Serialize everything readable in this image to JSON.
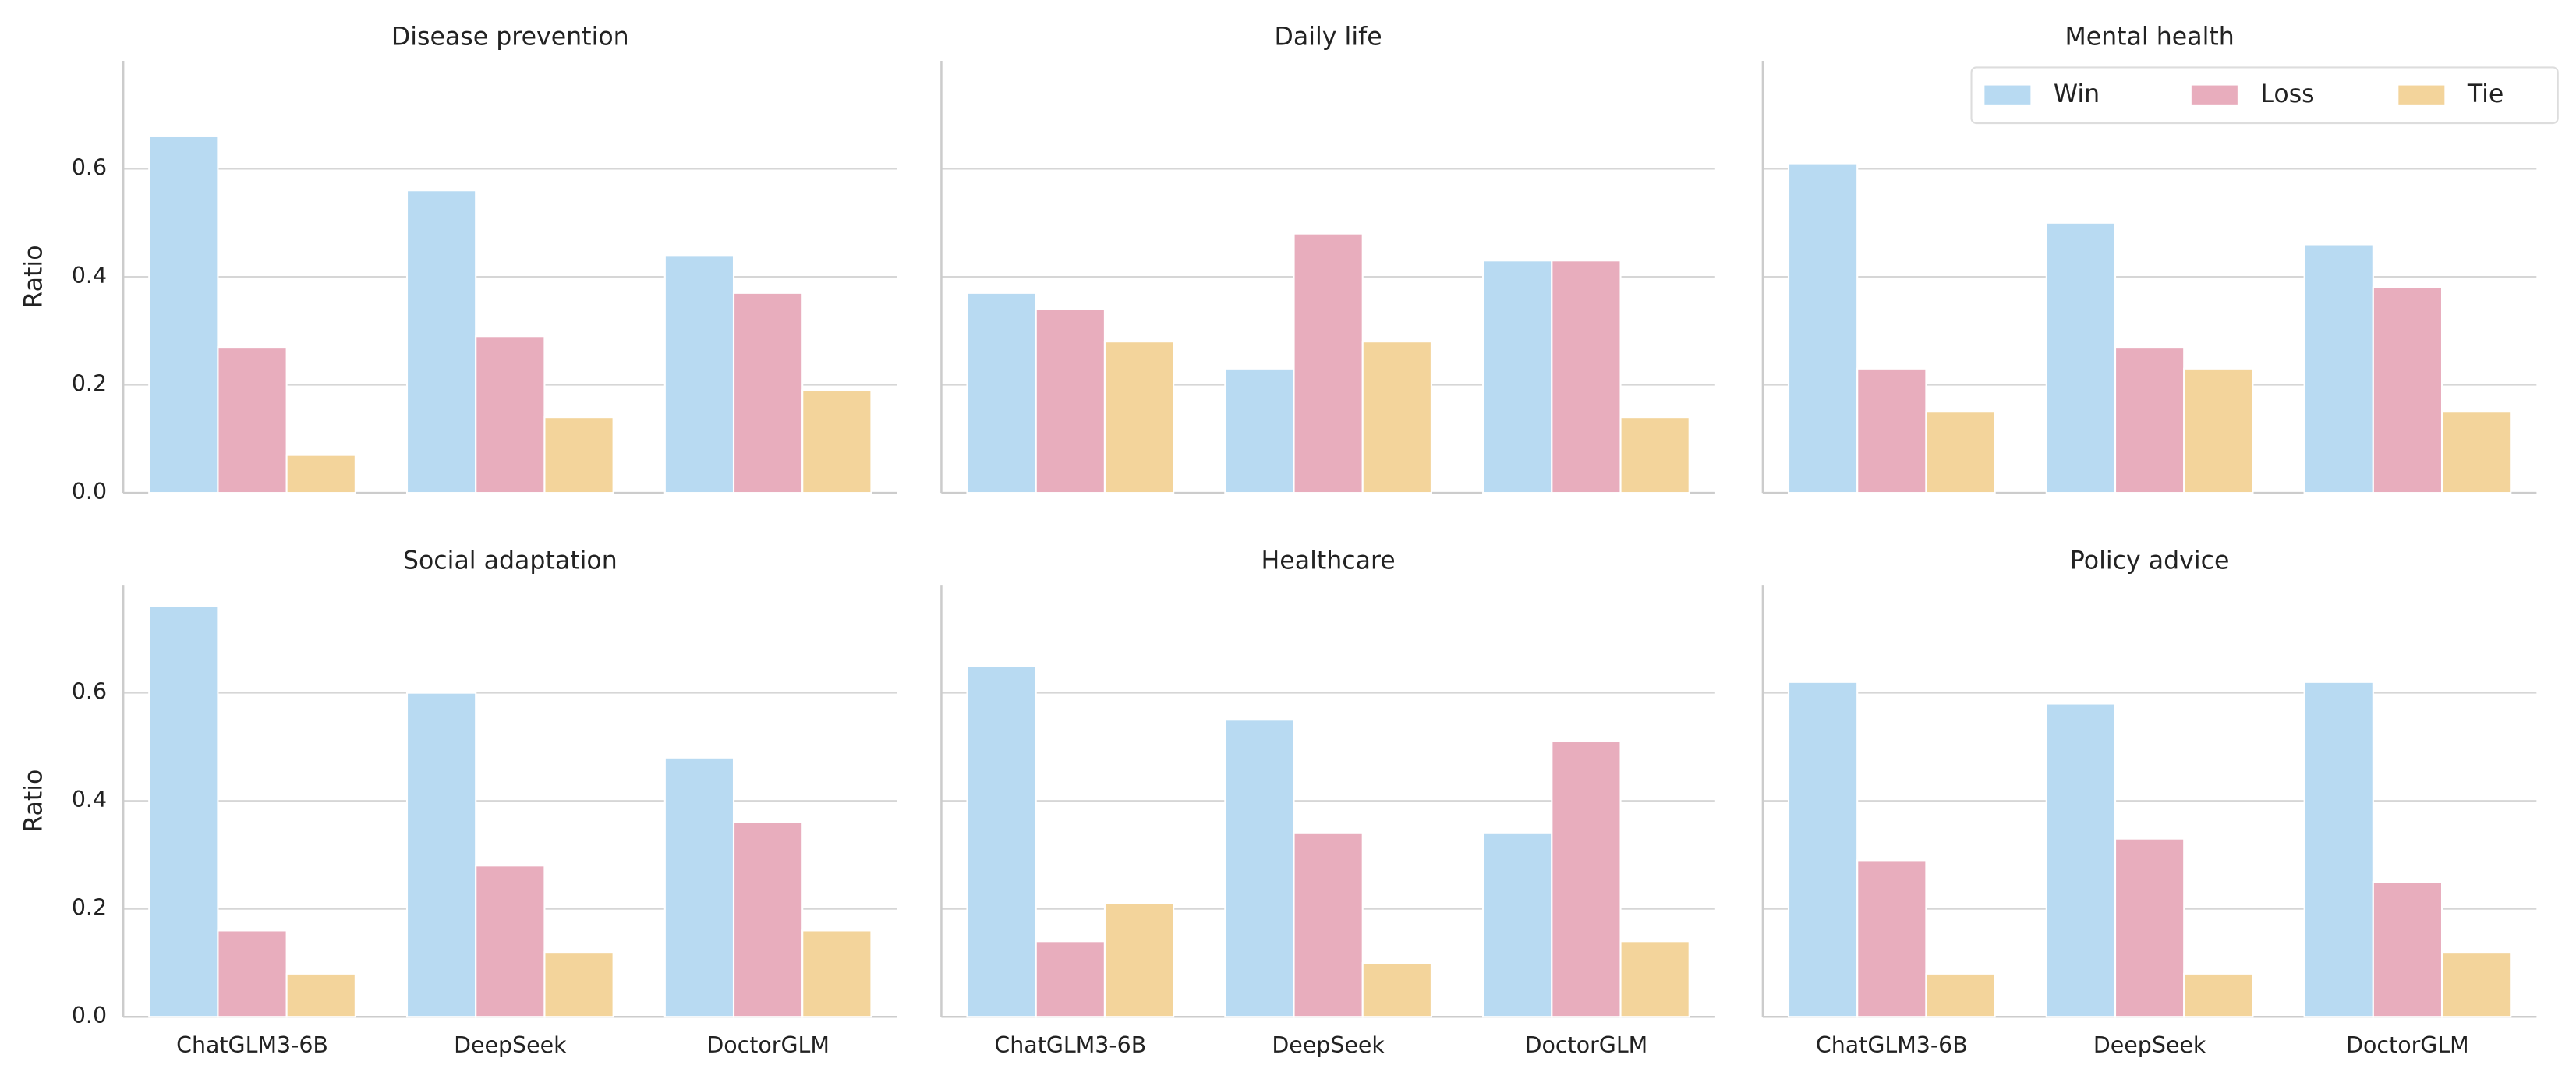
{
  "chart_data": [
    {
      "type": "bar",
      "title": "Disease prevention",
      "ylabel": "Ratio",
      "categories": [
        "ChatGLM3-6B",
        "DeepSeek",
        "DoctorGLM"
      ],
      "series": [
        {
          "name": "Win",
          "color": "#b8daf2",
          "values": [
            0.66,
            0.56,
            0.44
          ]
        },
        {
          "name": "Loss",
          "color": "#e8adbd",
          "values": [
            0.27,
            0.29,
            0.37
          ]
        },
        {
          "name": "Tie",
          "color": "#f3d49b",
          "values": [
            0.07,
            0.14,
            0.19
          ]
        }
      ],
      "ylim": [
        0,
        0.8
      ],
      "yticks": [
        {
          "value": 0,
          "label": "0.0"
        },
        0.2,
        0.4,
        0.6
      ],
      "grid": true
    },
    {
      "type": "bar",
      "title": "Daily life",
      "categories": [
        "ChatGLM3-6B",
        "DeepSeek",
        "DoctorGLM"
      ],
      "series": [
        {
          "name": "Win",
          "color": "#b8daf2",
          "values": [
            0.37,
            0.23,
            0.43
          ]
        },
        {
          "name": "Loss",
          "color": "#e8adbd",
          "values": [
            0.34,
            0.48,
            0.43
          ]
        },
        {
          "name": "Tie",
          "color": "#f3d49b",
          "values": [
            0.28,
            0.28,
            0.14
          ]
        }
      ],
      "ylim": [
        0,
        0.8
      ],
      "yticks": [
        0,
        0.2,
        0.4,
        0.6
      ],
      "grid": true
    },
    {
      "type": "bar",
      "title": "Mental health",
      "categories": [
        "ChatGLM3-6B",
        "DeepSeek",
        "DoctorGLM"
      ],
      "series": [
        {
          "name": "Win",
          "color": "#b8daf2",
          "values": [
            0.61,
            0.5,
            0.46
          ]
        },
        {
          "name": "Loss",
          "color": "#e8adbd",
          "values": [
            0.23,
            0.27,
            0.38
          ]
        },
        {
          "name": "Tie",
          "color": "#f3d49b",
          "values": [
            0.15,
            0.23,
            0.15
          ]
        }
      ],
      "ylim": [
        0,
        0.8
      ],
      "yticks": [
        0,
        0.2,
        0.4,
        0.6
      ],
      "grid": true,
      "legend": "upper right"
    },
    {
      "type": "bar",
      "title": "Social adaptation",
      "ylabel": "Ratio",
      "categories": [
        "ChatGLM3-6B",
        "DeepSeek",
        "DoctorGLM"
      ],
      "series": [
        {
          "name": "Win",
          "color": "#b8daf2",
          "values": [
            0.76,
            0.6,
            0.48
          ]
        },
        {
          "name": "Loss",
          "color": "#e8adbd",
          "values": [
            0.16,
            0.28,
            0.36
          ]
        },
        {
          "name": "Tie",
          "color": "#f3d49b",
          "values": [
            0.08,
            0.12,
            0.16
          ]
        }
      ],
      "ylim": [
        0,
        0.8
      ],
      "yticks": [
        {
          "value": 0,
          "label": "0.0"
        },
        0.2,
        0.4,
        0.6
      ],
      "grid": true
    },
    {
      "type": "bar",
      "title": "Healthcare",
      "categories": [
        "ChatGLM3-6B",
        "DeepSeek",
        "DoctorGLM"
      ],
      "series": [
        {
          "name": "Win",
          "color": "#b8daf2",
          "values": [
            0.65,
            0.55,
            0.34
          ]
        },
        {
          "name": "Loss",
          "color": "#e8adbd",
          "values": [
            0.14,
            0.34,
            0.51
          ]
        },
        {
          "name": "Tie",
          "color": "#f3d49b",
          "values": [
            0.21,
            0.1,
            0.14
          ]
        }
      ],
      "ylim": [
        0,
        0.8
      ],
      "yticks": [
        0,
        0.2,
        0.4,
        0.6
      ],
      "grid": true
    },
    {
      "type": "bar",
      "title": "Policy advice",
      "categories": [
        "ChatGLM3-6B",
        "DeepSeek",
        "DoctorGLM"
      ],
      "series": [
        {
          "name": "Win",
          "color": "#b8daf2",
          "values": [
            0.62,
            0.58,
            0.62
          ]
        },
        {
          "name": "Loss",
          "color": "#e8adbd",
          "values": [
            0.29,
            0.33,
            0.25
          ]
        },
        {
          "name": "Tie",
          "color": "#f3d49b",
          "values": [
            0.08,
            0.08,
            0.12
          ]
        }
      ],
      "ylim": [
        0,
        0.8
      ],
      "yticks": [
        0,
        0.2,
        0.4,
        0.6
      ],
      "grid": true
    }
  ]
}
